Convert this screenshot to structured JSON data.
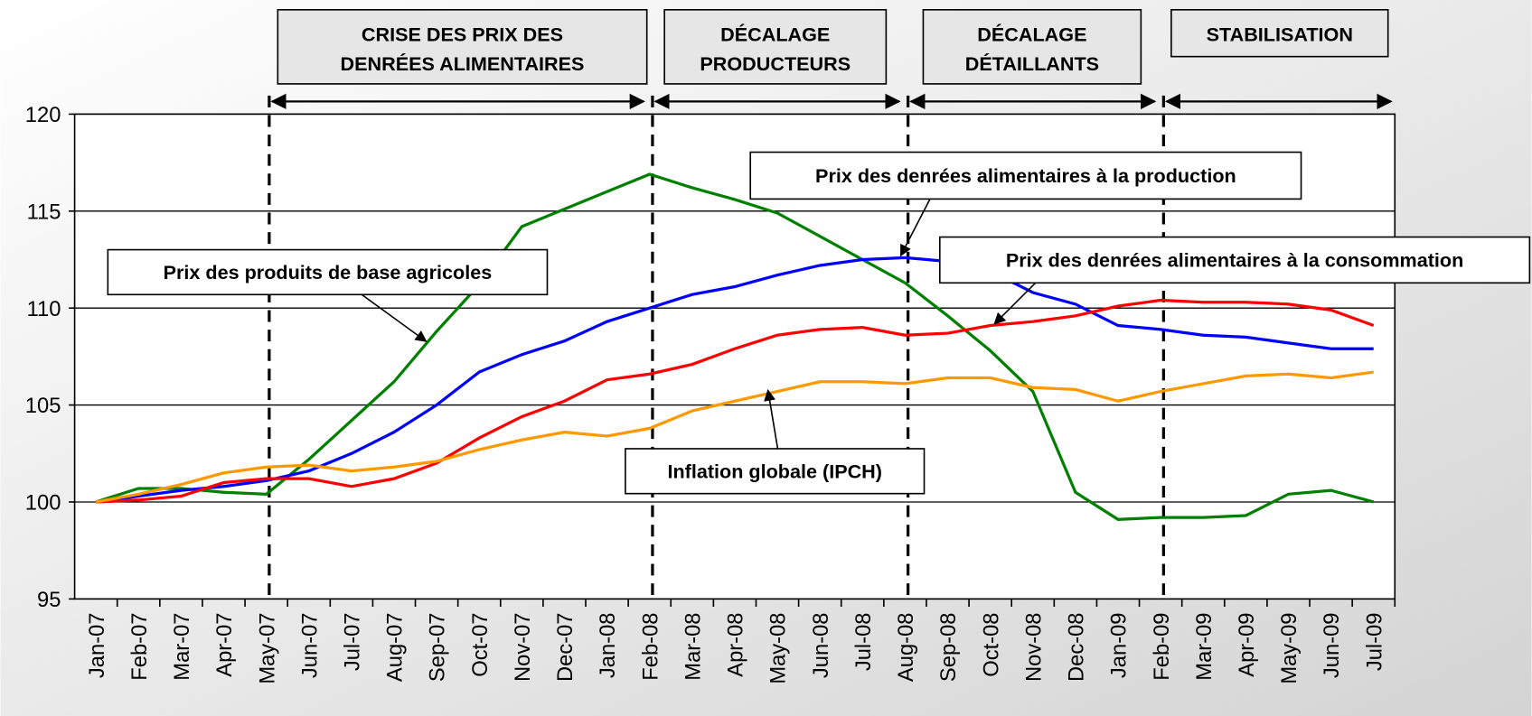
{
  "chart_data": {
    "type": "line",
    "categories": [
      "Jan-07",
      "Feb-07",
      "Mar-07",
      "Apr-07",
      "May-07",
      "Jun-07",
      "Jul-07",
      "Aug-07",
      "Sep-07",
      "Oct-07",
      "Nov-07",
      "Dec-07",
      "Jan-08",
      "Feb-08",
      "Mar-08",
      "Apr-08",
      "May-08",
      "Jun-08",
      "Jul-08",
      "Aug-08",
      "Sep-08",
      "Oct-08",
      "Nov-08",
      "Dec-08",
      "Jan-09",
      "Feb-09",
      "Mar-09",
      "Apr-09",
      "May-09",
      "Jun-09",
      "Jul-09"
    ],
    "series": [
      {
        "name": "Prix des produits de base agricoles",
        "color": "#008000",
        "values": [
          100,
          100.7,
          100.7,
          100.5,
          100.4,
          102.2,
          104.2,
          106.2,
          108.8,
          111.2,
          114.2,
          115.1,
          116,
          116.9,
          116.2,
          115.6,
          114.9,
          113.7,
          112.5,
          111.3,
          109.6,
          107.8,
          105.7,
          100.5,
          99.1,
          99.2,
          99.2,
          99.3,
          100.4,
          100.6,
          100
        ]
      },
      {
        "name": "Prix des denrées alimentaires à la production",
        "color": "#0000ff",
        "values": [
          100,
          100.3,
          100.6,
          100.8,
          101.1,
          101.6,
          102.5,
          103.6,
          105,
          106.7,
          107.6,
          108.3,
          109.3,
          110,
          110.7,
          111.1,
          111.7,
          112.2,
          112.5,
          112.6,
          112.4,
          111.9,
          110.8,
          110.2,
          109.1,
          108.9,
          108.6,
          108.5,
          108.2,
          107.9,
          107.9
        ]
      },
      {
        "name": "Prix des denrées alimentaires à la consommation",
        "color": "#ff0000",
        "values": [
          100,
          100.1,
          100.3,
          101,
          101.2,
          101.2,
          100.8,
          101.2,
          102,
          103.3,
          104.4,
          105.2,
          106.3,
          106.6,
          107.1,
          107.9,
          108.6,
          108.9,
          109,
          108.6,
          108.7,
          109.1,
          109.3,
          109.6,
          110.1,
          110.4,
          110.3,
          110.3,
          110.2,
          109.9,
          109.1
        ]
      },
      {
        "name": "Inflation globale (IPCH)",
        "color": "#ff9900",
        "values": [
          100,
          100.4,
          100.9,
          101.5,
          101.8,
          101.9,
          101.6,
          101.8,
          102.1,
          102.7,
          103.2,
          103.6,
          103.4,
          103.8,
          104.7,
          105.2,
          105.7,
          106.2,
          106.2,
          106.1,
          106.4,
          106.4,
          105.9,
          105.8,
          105.2,
          105.7,
          106.1,
          106.5,
          106.6,
          106.4,
          106.7
        ]
      }
    ],
    "phases": [
      {
        "lines": [
          "CRISE DES PRIX DES",
          "DENRÉES ALIMENTAIRES"
        ],
        "from": "May-07",
        "to": "Feb-08"
      },
      {
        "lines": [
          "DÉCALAGE",
          "PRODUCTEURS"
        ],
        "from": "Feb-08",
        "to": "Aug-08"
      },
      {
        "lines": [
          "DÉCALAGE",
          "DÉTAILLANTS"
        ],
        "from": "Aug-08",
        "to": "Feb-09"
      },
      {
        "lines": [
          "STABILISATION"
        ],
        "from": "Feb-09",
        "to": "Jul-09"
      }
    ],
    "ylim": [
      95,
      120
    ],
    "yticks": [
      95,
      100,
      105,
      110,
      115,
      120
    ],
    "grid": true
  }
}
